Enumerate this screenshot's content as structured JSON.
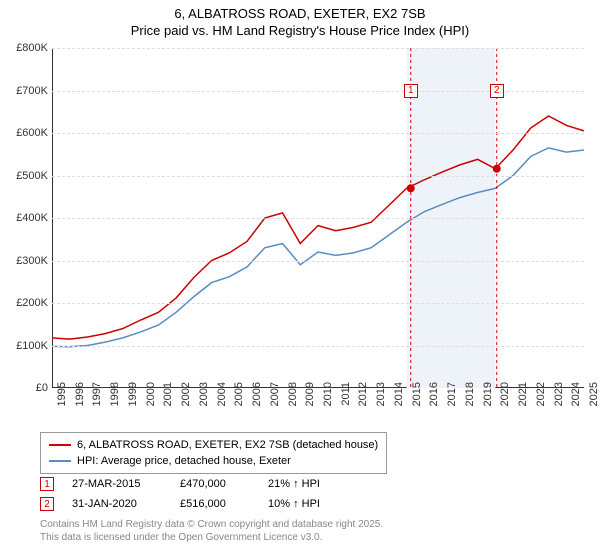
{
  "title": "6, ALBATROSS ROAD, EXETER, EX2 7SB",
  "subtitle": "Price paid vs. HM Land Registry's House Price Index (HPI)",
  "chart": {
    "type": "line",
    "x_years": [
      1995,
      1996,
      1997,
      1998,
      1999,
      2000,
      2001,
      2002,
      2003,
      2004,
      2005,
      2006,
      2007,
      2008,
      2009,
      2010,
      2011,
      2012,
      2013,
      2014,
      2015,
      2016,
      2017,
      2018,
      2019,
      2020,
      2021,
      2022,
      2023,
      2024,
      2025
    ],
    "ylim": [
      0,
      800000
    ],
    "ytick_step": 100000,
    "ytick_labels": [
      "£0",
      "£100K",
      "£200K",
      "£300K",
      "£400K",
      "£500K",
      "£600K",
      "£700K",
      "£800K"
    ],
    "background_color": "#ffffff",
    "grid_color": "#dddddd",
    "axis_color": "#333333",
    "font_size_ticks": 11,
    "series": [
      {
        "key": "property",
        "color": "#cc0000",
        "line_width": 1.5,
        "values_by_year": {
          "1995": 118000,
          "1996": 115000,
          "1997": 120000,
          "1998": 128000,
          "1999": 140000,
          "2000": 160000,
          "2001": 178000,
          "2002": 212000,
          "2003": 260000,
          "2004": 300000,
          "2005": 318000,
          "2006": 345000,
          "2007": 400000,
          "2008": 412000,
          "2009": 340000,
          "2010": 382000,
          "2011": 370000,
          "2012": 378000,
          "2013": 390000,
          "2014": 430000,
          "2015": 470000,
          "2016": 490000,
          "2017": 508000,
          "2018": 525000,
          "2019": 538000,
          "2020": 516000,
          "2021": 560000,
          "2022": 612000,
          "2023": 640000,
          "2024": 618000,
          "2025": 605000
        }
      },
      {
        "key": "hpi",
        "color": "#5a8bc4",
        "line_width": 1.5,
        "values_by_year": {
          "1995": 98000,
          "1996": 97000,
          "1997": 100000,
          "1998": 108000,
          "1999": 118000,
          "2000": 132000,
          "2001": 148000,
          "2002": 178000,
          "2003": 215000,
          "2004": 248000,
          "2005": 262000,
          "2006": 285000,
          "2007": 330000,
          "2008": 340000,
          "2009": 290000,
          "2010": 320000,
          "2011": 312000,
          "2012": 318000,
          "2013": 330000,
          "2014": 360000,
          "2015": 390000,
          "2016": 415000,
          "2017": 432000,
          "2018": 448000,
          "2019": 460000,
          "2020": 470000,
          "2021": 500000,
          "2022": 545000,
          "2023": 565000,
          "2024": 555000,
          "2025": 560000
        }
      }
    ],
    "shaded_band": {
      "from_year": 2015,
      "to_year": 2020,
      "fill": "#eef3fa"
    },
    "markers": [
      {
        "n": "1",
        "year": 2015.23,
        "value": 470000,
        "color": "#cc0000",
        "label_y": 700000
      },
      {
        "n": "2",
        "year": 2020.08,
        "value": 516000,
        "color": "#cc0000",
        "label_y": 700000
      }
    ],
    "marker_dot_radius": 4
  },
  "legend": {
    "border_color": "#999999",
    "items": [
      {
        "color": "#cc0000",
        "label": "6, ALBATROSS ROAD, EXETER, EX2 7SB (detached house)"
      },
      {
        "color": "#5a8bc4",
        "label": "HPI: Average price, detached house, Exeter"
      }
    ]
  },
  "sales": [
    {
      "n": "1",
      "color": "#cc0000",
      "date": "27-MAR-2015",
      "price": "£470,000",
      "delta": "21% ↑ HPI"
    },
    {
      "n": "2",
      "color": "#cc0000",
      "date": "31-JAN-2020",
      "price": "£516,000",
      "delta": "10% ↑ HPI"
    }
  ],
  "footer": {
    "line1": "Contains HM Land Registry data © Crown copyright and database right 2025.",
    "line2": "This data is licensed under the Open Government Licence v3.0."
  }
}
